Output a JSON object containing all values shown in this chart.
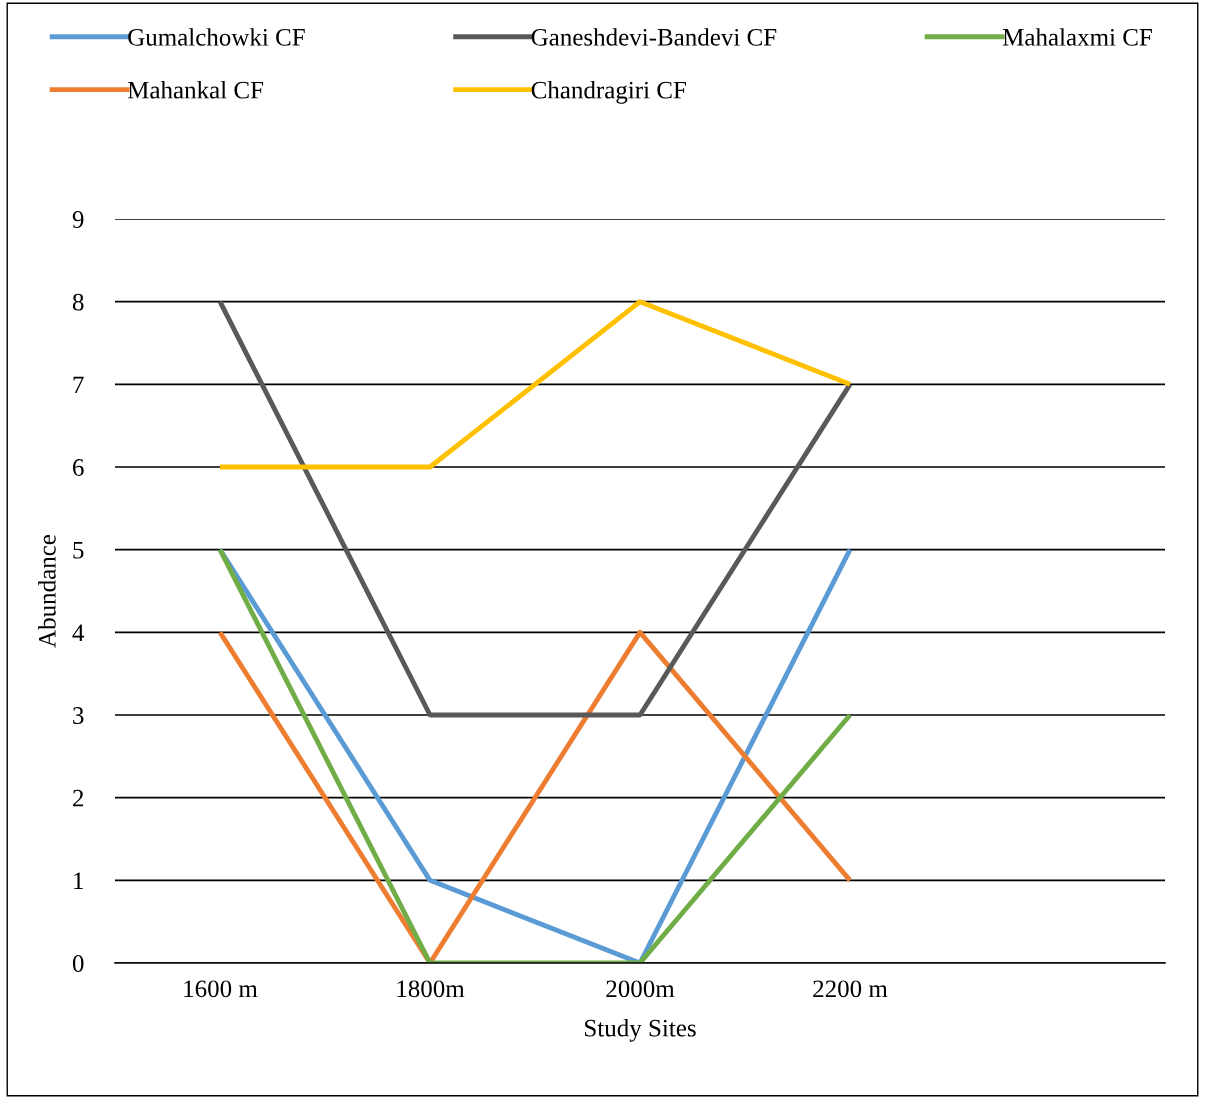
{
  "chart_data": {
    "type": "line",
    "xlabel": "Study Sites",
    "ylabel": "Abundance",
    "categories": [
      "1600 m",
      "1800m",
      "2000m",
      "2200 m",
      null
    ],
    "series": [
      {
        "name": "Gumalchowki CF",
        "color": "#5b9bd5",
        "values": [
          5,
          1,
          0,
          5,
          null
        ]
      },
      {
        "name": "Mahankal CF",
        "color": "#ed7d31",
        "values": [
          4,
          0,
          4,
          1,
          null
        ]
      },
      {
        "name": "Ganeshdevi-Bandevi CF",
        "color": "#595959",
        "values": [
          8,
          3,
          3,
          7,
          null
        ]
      },
      {
        "name": "Chandragiri CF",
        "color": "#ffc000",
        "values": [
          6,
          6,
          8,
          7,
          null
        ]
      },
      {
        "name": "Mahalaxmi CF",
        "color": "#70ad47",
        "values": [
          5,
          0,
          0,
          3,
          null
        ]
      }
    ],
    "ylim": [
      0,
      9
    ],
    "yticks": [
      0,
      1,
      2,
      3,
      4,
      5,
      6,
      7,
      8,
      9
    ],
    "grid": "y",
    "legend": "top",
    "marker": "none",
    "line_style": "solid"
  }
}
